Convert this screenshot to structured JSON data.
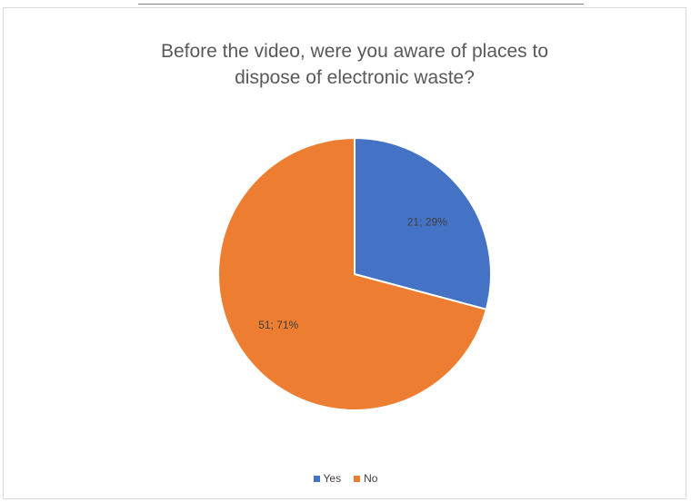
{
  "chart_data": {
    "type": "pie",
    "title_lines": [
      "Before the video, were you aware of places to",
      "dispose of electronic waste?"
    ],
    "slices": [
      {
        "name": "Yes",
        "value": 21,
        "percent": 29,
        "label": "21; 29%",
        "color": "#4472c4"
      },
      {
        "name": "No",
        "value": 51,
        "percent": 71,
        "label": "51; 71%",
        "color": "#ed7d31"
      }
    ],
    "start_angle_deg": 0,
    "direction": "clockwise",
    "legend_position": "bottom"
  }
}
